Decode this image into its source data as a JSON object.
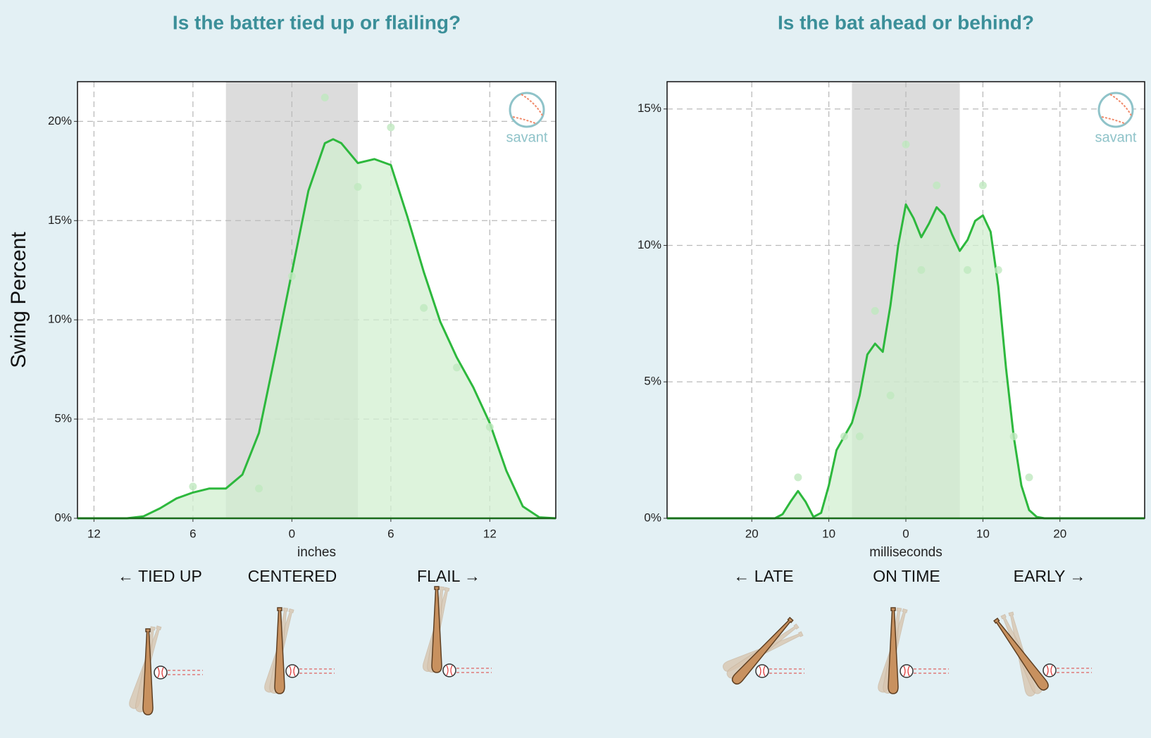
{
  "chart_data": [
    {
      "type": "area",
      "title": "Is the batter tied up or flailing?",
      "xlabel": "inches",
      "ylabel": "Swing Percent",
      "watermark": "savant",
      "color": "#2db83d",
      "fill": "#d2efd0",
      "x": [
        -13,
        -10,
        -9,
        -8,
        -7,
        -6,
        -5,
        -4,
        -3,
        -2,
        -1,
        0,
        1,
        2,
        2.5,
        3,
        4,
        5,
        6,
        7,
        8,
        9,
        10,
        11,
        12,
        13,
        14,
        15,
        16
      ],
      "values": [
        0,
        0,
        0.1,
        0.5,
        1.0,
        1.3,
        1.5,
        1.5,
        2.2,
        4.3,
        8.3,
        12.4,
        16.5,
        18.9,
        19.1,
        18.9,
        17.9,
        18.1,
        17.8,
        15.2,
        12.4,
        9.9,
        8.1,
        6.6,
        4.8,
        2.4,
        0.6,
        0.05,
        0
      ],
      "scatter": {
        "color": "#bfe8bf",
        "x": [
          -6,
          -2,
          0,
          2,
          4,
          6,
          8,
          10,
          12
        ],
        "values": [
          1.6,
          1.5,
          12.2,
          21.2,
          16.7,
          19.7,
          10.6,
          7.6,
          4.6
        ]
      },
      "shaded_range": [
        -4,
        4
      ],
      "xlim": [
        -13,
        16
      ],
      "ylim": [
        0,
        22
      ],
      "xticks": [
        {
          "value": -12,
          "label": "12"
        },
        {
          "value": -6,
          "label": "6"
        },
        0,
        6,
        12
      ],
      "yticks": [
        {
          "value": 0,
          "label": "0%"
        },
        {
          "value": 5,
          "label": "5%"
        },
        {
          "value": 10,
          "label": "10%"
        },
        {
          "value": 15,
          "label": "15%"
        },
        {
          "value": 20,
          "label": "20%"
        }
      ],
      "grid": true,
      "zone_labels": [
        "← TIED UP",
        "CENTERED",
        "FLAIL →"
      ]
    },
    {
      "type": "area",
      "title": "Is the bat ahead or behind?",
      "xlabel": "milliseconds",
      "watermark": "savant",
      "color": "#2db83d",
      "fill": "#d2efd0",
      "x": [
        -31,
        -17,
        -16,
        -15,
        -14,
        -13,
        -12,
        -11,
        -10,
        -9,
        -8,
        -7,
        -6,
        -5,
        -4,
        -3,
        -2,
        -1,
        0,
        1,
        2,
        3,
        4,
        5,
        6,
        7,
        8,
        9,
        10,
        11,
        12,
        13,
        14,
        15,
        16,
        17,
        18,
        31
      ],
      "values": [
        0,
        0,
        0.15,
        0.6,
        1.0,
        0.6,
        0.05,
        0.2,
        1.2,
        2.5,
        3.0,
        3.5,
        4.5,
        6.0,
        6.4,
        6.1,
        7.8,
        10.0,
        11.5,
        11.0,
        10.3,
        10.8,
        11.4,
        11.1,
        10.4,
        9.8,
        10.2,
        10.9,
        11.1,
        10.5,
        8.5,
        5.5,
        3.0,
        1.2,
        0.3,
        0.05,
        0,
        0
      ],
      "scatter": {
        "color": "#bfe8bf",
        "x": [
          -14,
          -8,
          -6,
          -4,
          -2,
          0,
          2,
          4,
          8,
          10,
          12,
          14,
          16
        ],
        "values": [
          1.5,
          3.0,
          3.0,
          7.6,
          4.5,
          13.7,
          9.1,
          12.2,
          9.1,
          12.2,
          9.1,
          3.0,
          1.5
        ]
      },
      "shaded_range": [
        -7,
        7
      ],
      "xlim": [
        -31,
        31
      ],
      "ylim": [
        0,
        16
      ],
      "xticks": [
        {
          "value": -20,
          "label": "20"
        },
        {
          "value": -10,
          "label": "10"
        },
        0,
        10,
        20
      ],
      "yticks": [
        {
          "value": 0,
          "label": "0%"
        },
        {
          "value": 5,
          "label": "5%"
        },
        {
          "value": 10,
          "label": "10%"
        },
        {
          "value": 15,
          "label": "15%"
        }
      ],
      "grid": true,
      "zone_labels": [
        "← LATE",
        "ON TIME",
        "EARLY →"
      ]
    }
  ]
}
